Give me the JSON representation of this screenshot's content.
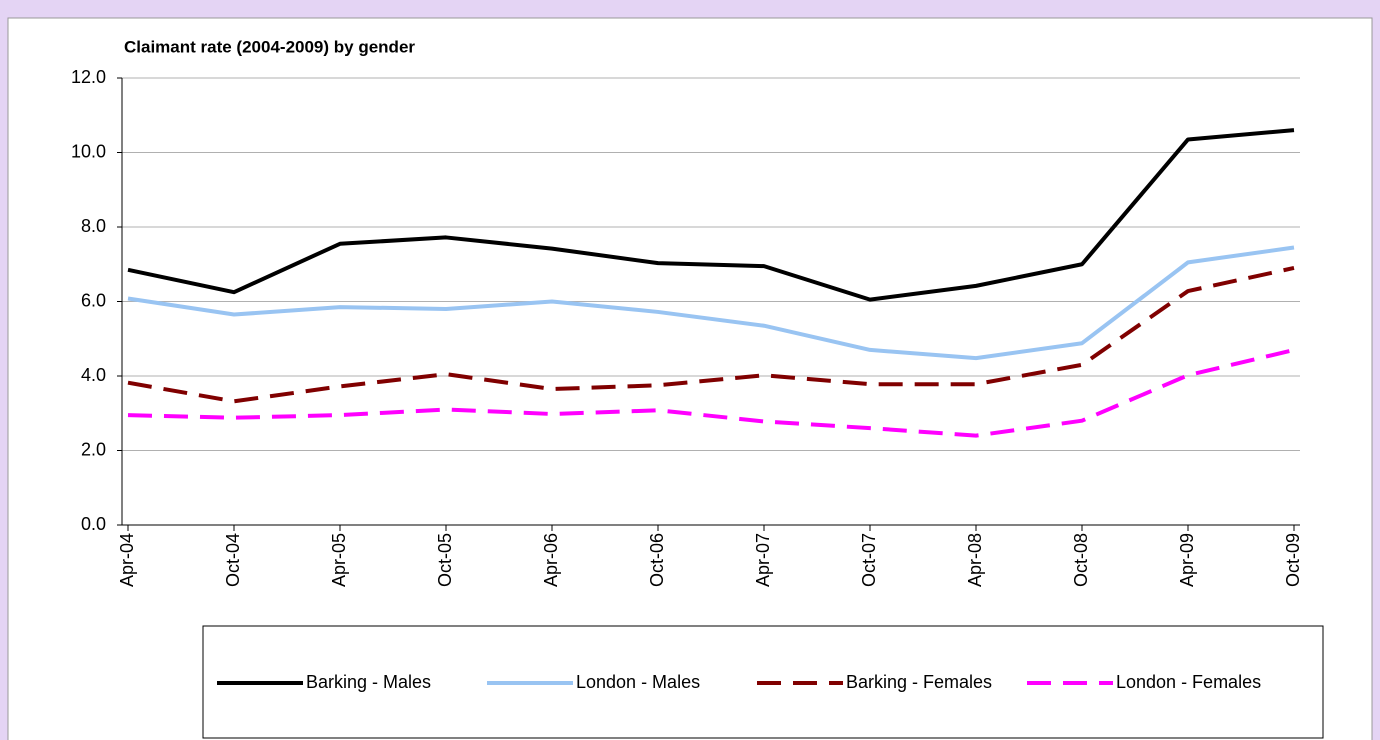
{
  "chart_data": {
    "type": "line",
    "title": "Claimant rate (2004-2009) by gender",
    "categories": [
      "Apr-04",
      "Oct-04",
      "Apr-05",
      "Oct-05",
      "Apr-06",
      "Oct-06",
      "Apr-07",
      "Oct-07",
      "Apr-08",
      "Oct-08",
      "Apr-09",
      "Oct-09"
    ],
    "series": [
      {
        "name": "Barking - Males",
        "color": "#000000",
        "dashed": false,
        "values": [
          6.85,
          6.25,
          7.55,
          7.72,
          7.42,
          7.03,
          6.95,
          6.05,
          6.42,
          7.0,
          10.35,
          10.6
        ]
      },
      {
        "name": "London - Males",
        "color": "#99c4f2",
        "dashed": false,
        "values": [
          6.08,
          5.65,
          5.85,
          5.8,
          6.0,
          5.72,
          5.35,
          4.7,
          4.48,
          4.88,
          7.05,
          7.45
        ]
      },
      {
        "name": "Barking - Females",
        "color": "#800000",
        "dashed": true,
        "values": [
          3.82,
          3.32,
          3.72,
          4.05,
          3.65,
          3.75,
          4.02,
          3.78,
          3.78,
          4.3,
          6.28,
          6.9
        ]
      },
      {
        "name": "London - Females",
        "color": "#ff00ff",
        "dashed": true,
        "values": [
          2.95,
          2.88,
          2.95,
          3.1,
          2.98,
          3.08,
          2.78,
          2.6,
          2.4,
          2.8,
          4.02,
          4.7
        ]
      }
    ],
    "ylim": [
      0,
      12
    ],
    "yticks": [
      {
        "value": 0,
        "label": "0.0"
      },
      {
        "value": 2,
        "label": "2.0"
      },
      {
        "value": 4,
        "label": "4.0"
      },
      {
        "value": 6,
        "label": "6.0"
      },
      {
        "value": 8,
        "label": "8.0"
      },
      {
        "value": 10,
        "label": "10.0"
      },
      {
        "value": 12,
        "label": "12.0"
      }
    ],
    "grid": true,
    "legend": "bottom"
  }
}
